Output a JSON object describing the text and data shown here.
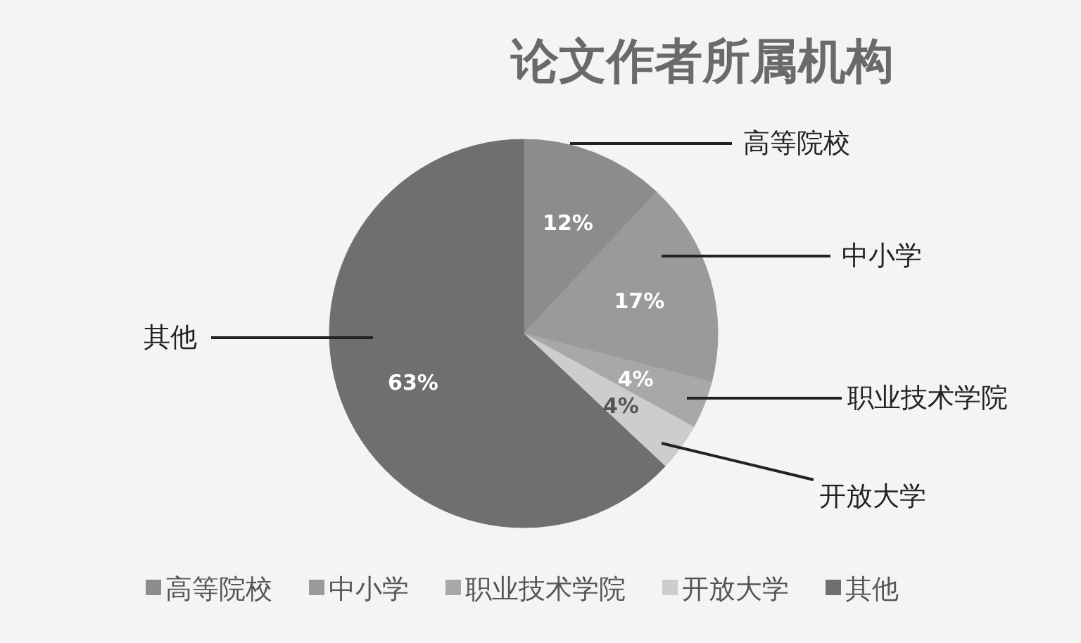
{
  "chart_data": {
    "type": "pie",
    "title": "论文作者所属机构",
    "categories": [
      "高等院校",
      "中小学",
      "职业技术学院",
      "开放大学",
      "其他"
    ],
    "values": [
      12,
      17,
      4,
      4,
      63
    ],
    "value_labels": [
      "12%",
      "17%",
      "4%",
      "4%",
      "63%"
    ],
    "colors": [
      "#8c8c8c",
      "#9a9a9a",
      "#a8a8a8",
      "#cdcdcd",
      "#6f6f6f"
    ],
    "legend": "bottom"
  }
}
